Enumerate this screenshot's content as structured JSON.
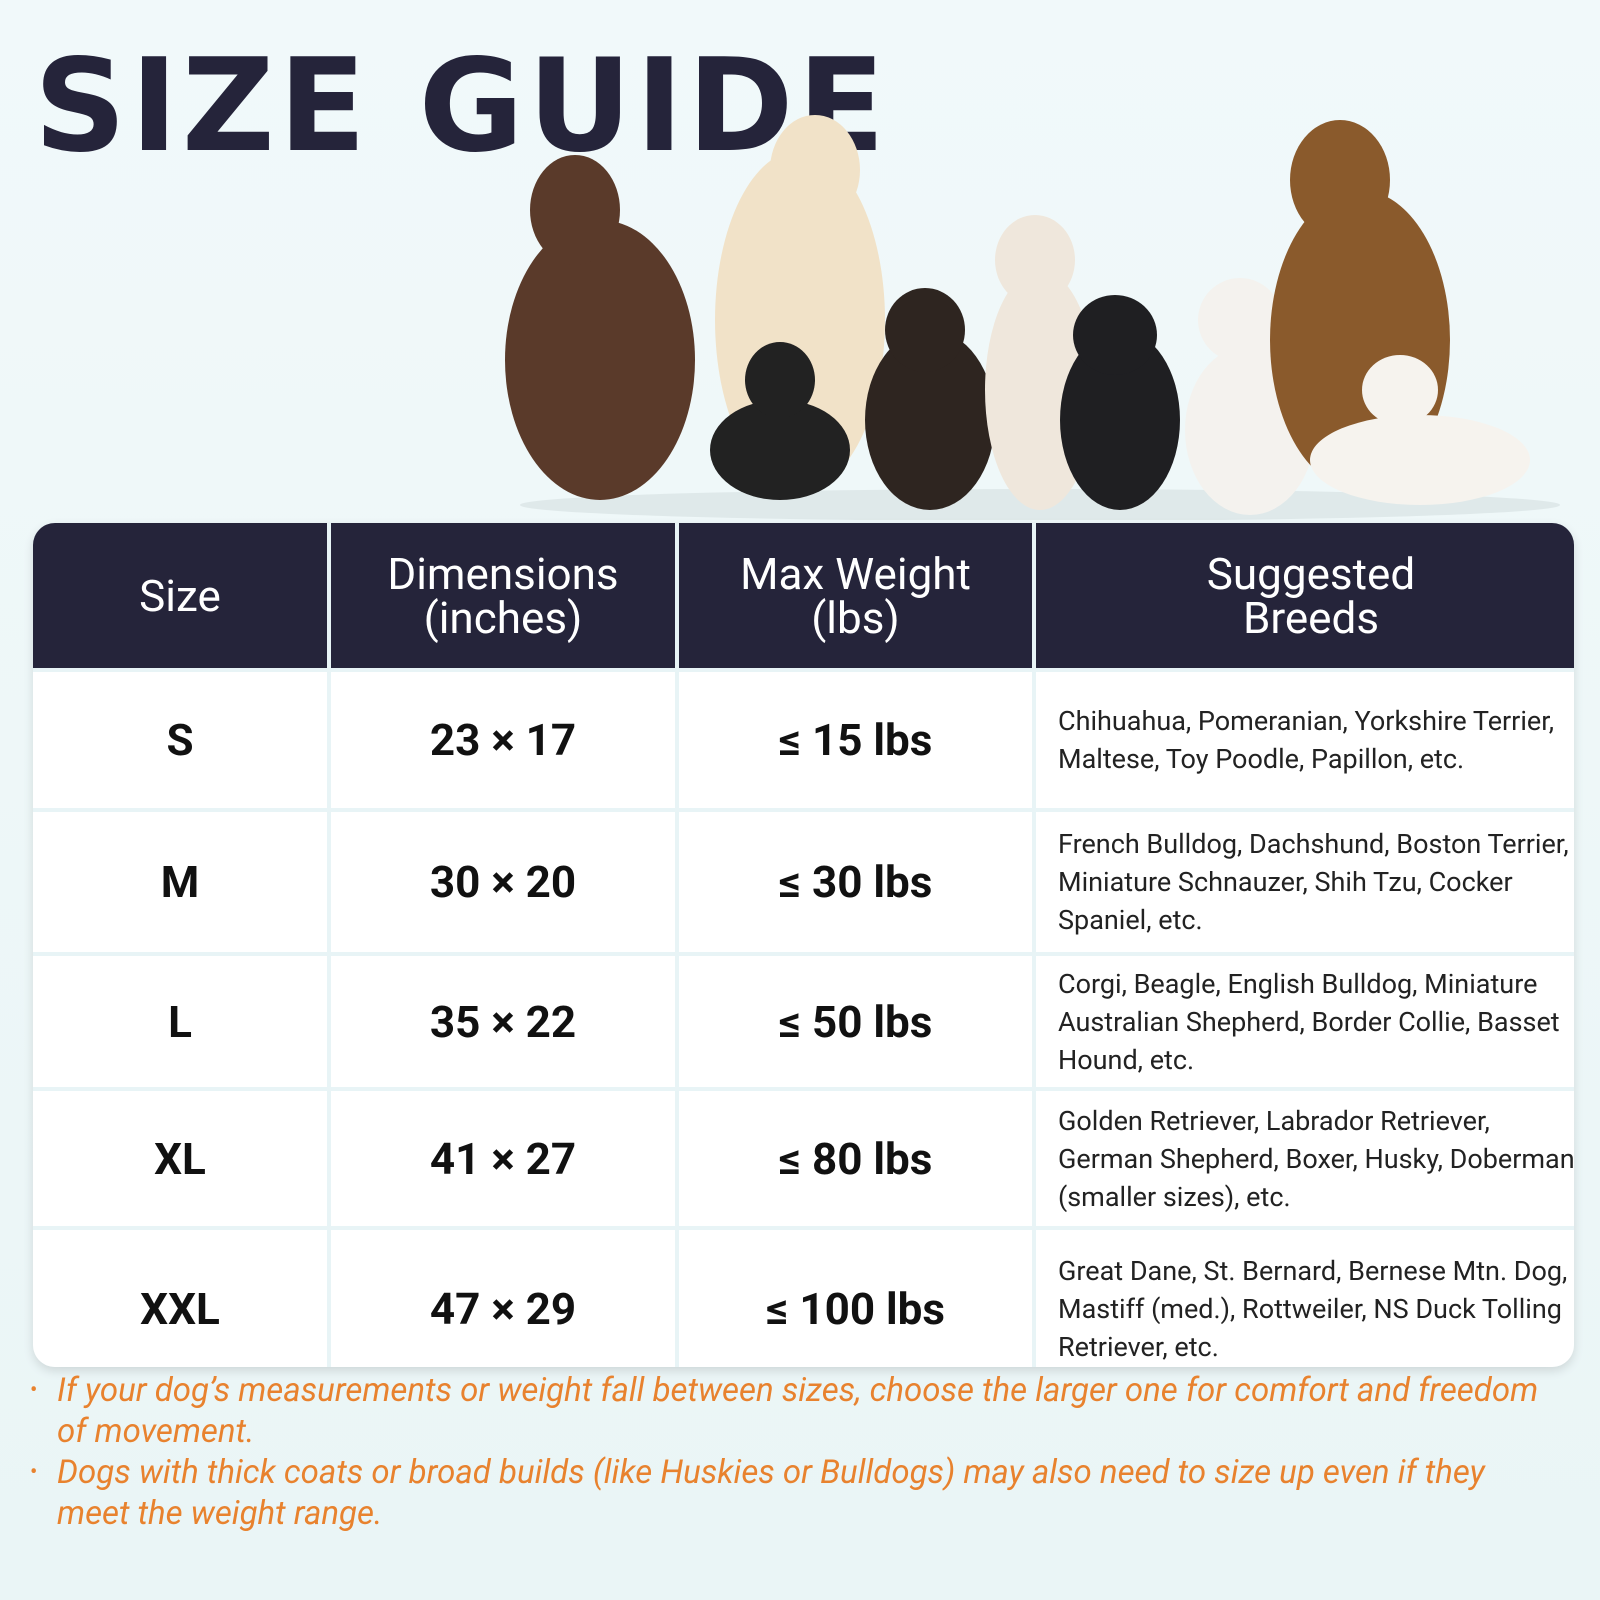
{
  "header": {
    "title": "SIZE GUIDE"
  },
  "table": {
    "columns": [
      "Size",
      "Dimensions (inches)",
      "Max Weight (lbs)",
      "Suggested Breeds"
    ],
    "rows": [
      [
        "S",
        "23 × 17",
        "≤ 15 lbs",
        "Chihuahua, Pomeranian, Yorkshire Terrier, Maltese, Toy Poodle, Papillon, etc."
      ],
      [
        "M",
        "30 × 20",
        "≤ 30 lbs",
        "French Bulldog, Dachshund, Boston Terrier, Miniature Schnauzer, Shih Tzu, Cocker Spaniel, etc."
      ],
      [
        "L",
        "35 × 22",
        "≤ 50 lbs",
        "Corgi, Beagle, English Bulldog, Miniature Australian Shepherd, Border Collie, Basset Hound, etc."
      ],
      [
        "XL",
        "41 × 27",
        "≤ 80 lbs",
        "Golden Retriever, Labrador Retriever, German Shepherd, Boxer, Husky, Doberman (smaller sizes), etc."
      ],
      [
        "XXL",
        "47 × 29",
        "≤ 100 lbs",
        "Great Dane, St. Bernard, Bernese Mtn. Dog, Mastiff (med.), Rottweiler, NS Duck Tolling Retriever, etc."
      ]
    ]
  },
  "notes": [
    "If your dog’s measurements or weight fall between sizes, choose the larger one for comfort and freedom of movement.",
    "Dogs with thick coats or broad builds (like Huskies or Bulldogs) may also need to size up even if they meet the weight range."
  ]
}
